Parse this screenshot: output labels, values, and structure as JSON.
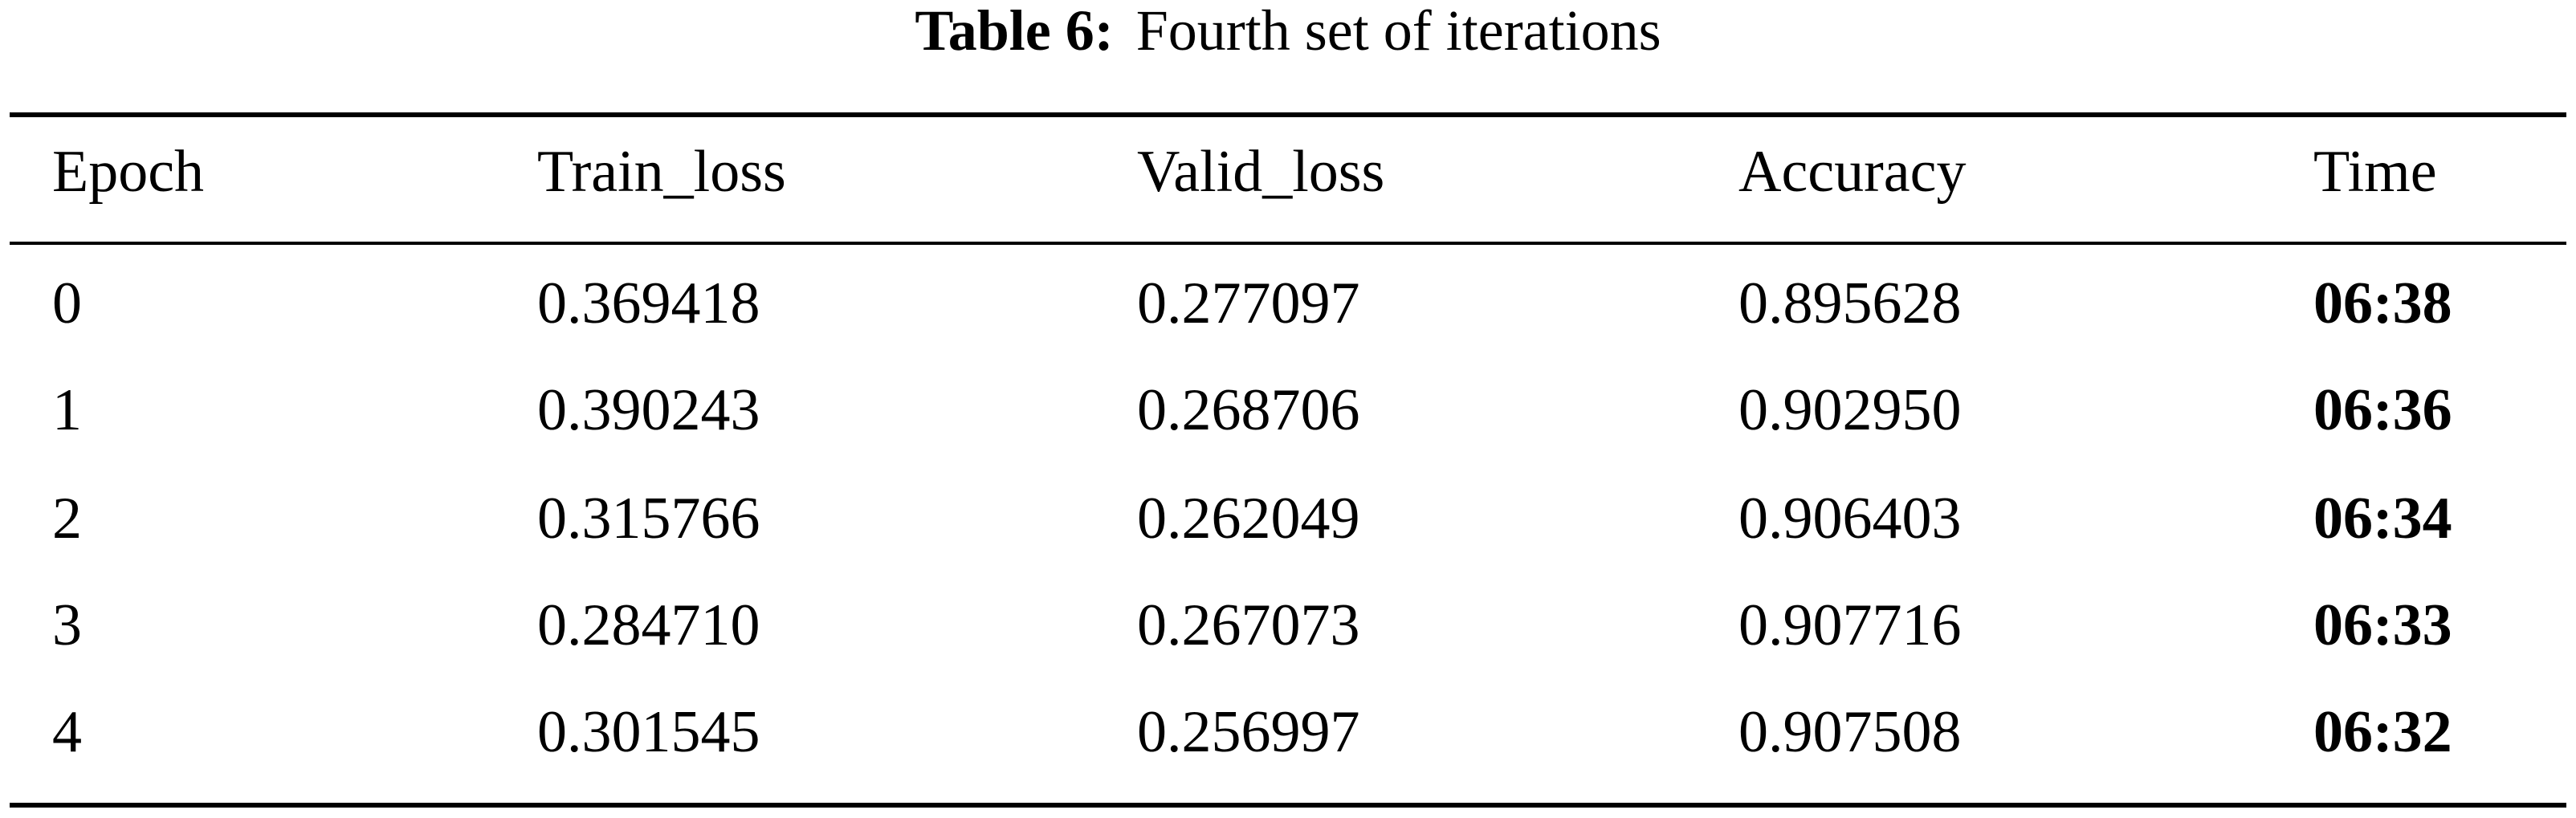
{
  "caption": {
    "label": "Table 6:",
    "text": "Fourth set of iterations"
  },
  "table": {
    "header": [
      "Epoch",
      "Train_loss",
      "Valid_loss",
      "Accuracy",
      "Time"
    ],
    "rows": [
      [
        "0",
        "0.369418",
        "0.277097",
        "0.895628",
        "06:38"
      ],
      [
        "1",
        "0.390243",
        "0.268706",
        "0.902950",
        "06:36"
      ],
      [
        "2",
        "0.315766",
        "0.262049",
        "0.906403",
        "06:34"
      ],
      [
        "3",
        "0.284710",
        "0.267073",
        "0.907716",
        "06:33"
      ],
      [
        "4",
        "0.301545",
        "0.256997",
        "0.907508",
        "06:32"
      ]
    ]
  }
}
